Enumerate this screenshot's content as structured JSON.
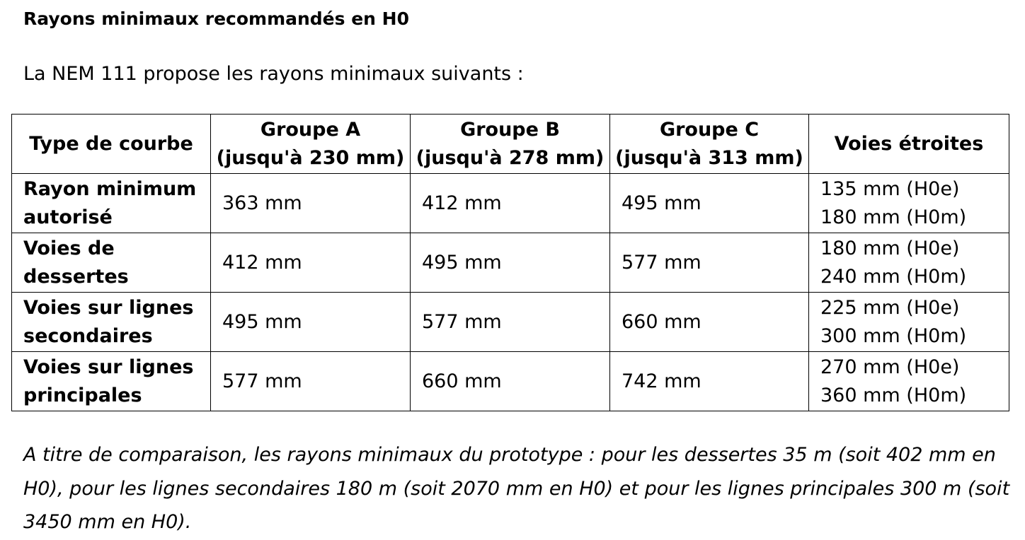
{
  "title": "Rayons minimaux recommandés en H0",
  "intro": "La NEM 111 propose les rayons minimaux suivants :",
  "table": {
    "headers": [
      [
        "Type de courbe"
      ],
      [
        "Groupe A",
        "(jusqu'à 230 mm)"
      ],
      [
        "Groupe B",
        "(jusqu'à 278 mm)"
      ],
      [
        "Groupe C",
        "(jusqu'à 313 mm)"
      ],
      [
        "Voies étroites"
      ]
    ],
    "rows": [
      {
        "label": [
          "Rayon minimum",
          "autorisé"
        ],
        "group_a": "363 mm",
        "group_b": "412 mm",
        "group_c": "495 mm",
        "narrow": [
          "135 mm (H0e)",
          "180 mm (H0m)"
        ]
      },
      {
        "label": [
          "Voies de",
          "dessertes"
        ],
        "group_a": "412 mm",
        "group_b": "495 mm",
        "group_c": "577 mm",
        "narrow": [
          "180 mm (H0e)",
          "240 mm (H0m)"
        ]
      },
      {
        "label": [
          "Voies sur lignes",
          "secondaires"
        ],
        "group_a": "495 mm",
        "group_b": "577 mm",
        "group_c": "660 mm",
        "narrow": [
          "225 mm (H0e)",
          "300 mm (H0m)"
        ]
      },
      {
        "label": [
          "Voies sur lignes",
          "principales"
        ],
        "group_a": "577 mm",
        "group_b": "660 mm",
        "group_c": "742 mm",
        "narrow": [
          "270 mm (H0e)",
          "360 mm (H0m)"
        ]
      }
    ]
  },
  "note": "A titre de comparaison, les rayons minimaux du prototype : pour les dessertes 35 m (soit 402 mm en H0), pour les lignes secondaires 180 m (soit 2070 mm en H0) et pour les lignes principales 300 m (soit 3450 mm en H0)."
}
